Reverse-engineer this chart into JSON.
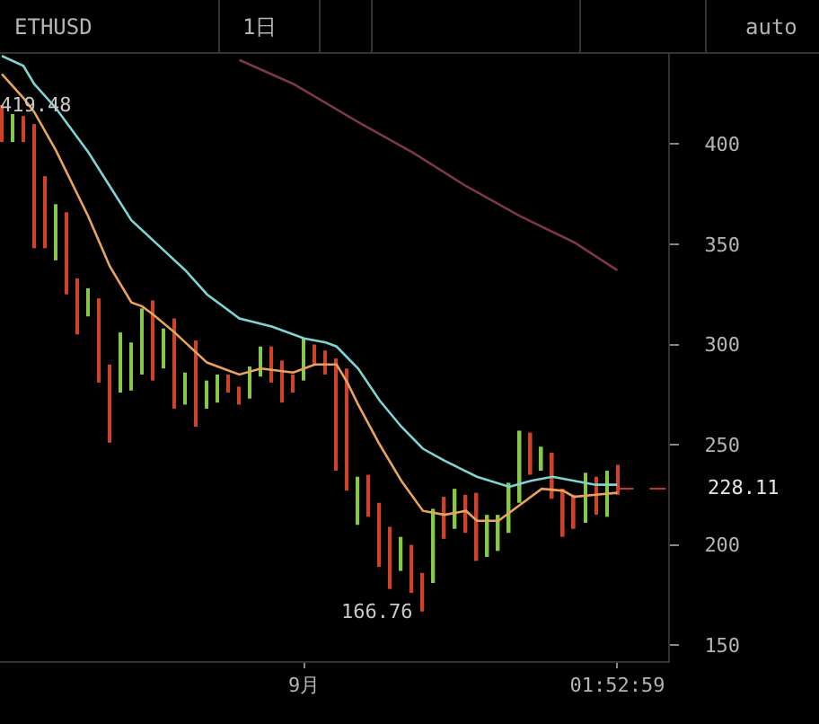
{
  "chart_data": {
    "type": "bar",
    "title": "ETHUSD",
    "annotations": [
      "1日",
      "auto",
      {
        "text": "419.48",
        "x": "--08-04",
        "y": 419.48
      },
      {
        "text": "166.76",
        "x": "--09-12",
        "y": 166.76
      },
      {
        "text": "228.11",
        "x": "--10-04T17:00",
        "y": 228.11
      }
    ],
    "x": [
      "--08-04",
      "--08-05",
      "--08-06",
      "--08-07",
      "--08-08",
      "--08-09",
      "--08-10",
      "--08-11",
      "--08-12",
      "--08-13",
      "--08-14",
      "--08-15",
      "--08-16",
      "--08-17",
      "--08-18",
      "--08-19",
      "--08-20",
      "--08-21",
      "--08-22",
      "--08-23",
      "--08-24",
      "--08-25",
      "--08-26",
      "--08-27",
      "--08-28",
      "--08-29",
      "--08-30",
      "--08-31",
      "--09-01",
      "--09-02",
      "--09-03",
      "--09-04",
      "--09-05",
      "--09-06",
      "--09-07",
      "--09-08",
      "--09-09",
      "--09-10",
      "--09-11",
      "--09-12",
      "--09-13",
      "--09-14",
      "--09-15",
      "--09-16",
      "--09-17",
      "--09-18",
      "--09-19",
      "--09-20",
      "--09-21",
      "--09-22",
      "--09-23",
      "--09-24",
      "--09-25",
      "--09-26",
      "--09-27",
      "--09-28",
      "--09-29",
      "--09-30"
    ],
    "series": [
      {
        "base": [
          401,
          401,
          401,
          348,
          348,
          342,
          325,
          305,
          314,
          281,
          251,
          276,
          277,
          285,
          282,
          288,
          268,
          270,
          259,
          268,
          271,
          276,
          270,
          273,
          284,
          281,
          271,
          276,
          282,
          290,
          285,
          237,
          227,
          210,
          214,
          189,
          178,
          187,
          176,
          166.76,
          181,
          203,
          208,
          206,
          192,
          194,
          197,
          206,
          221,
          235,
          237,
          223,
          204,
          208,
          211,
          215,
          214,
          225
        ],
        "values": [
          18.48,
          14,
          13,
          62,
          36,
          28,
          41,
          28,
          14,
          42,
          39,
          30,
          24,
          33,
          40,
          20,
          45,
          16,
          43,
          14,
          14,
          9,
          9,
          16,
          15,
          18,
          21,
          9,
          21,
          10,
          12,
          56,
          61,
          24,
          21,
          32,
          31,
          17,
          24,
          19.24,
          37,
          21,
          20,
          19,
          34,
          21,
          18,
          25,
          36,
          21,
          12,
          23,
          24,
          17,
          25,
          19,
          23,
          15
        ],
        "colors": [
          "#d0412b",
          "#86c94a",
          "#d0412b",
          "#d0412b",
          "#d0412b",
          "#86c94a",
          "#d0412b",
          "#d0412b",
          "#86c94a",
          "#d0412b",
          "#d0412b",
          "#86c94a",
          "#86c94a",
          "#86c94a",
          "#d0412b",
          "#86c94a",
          "#d0412b",
          "#86c94a",
          "#d0412b",
          "#86c94a",
          "#86c94a",
          "#d0412b",
          "#d0412b",
          "#86c94a",
          "#86c94a",
          "#d0412b",
          "#d0412b",
          "#d0412b",
          "#86c94a",
          "#d0412b",
          "#d0412b",
          "#d0412b",
          "#d0412b",
          "#86c94a",
          "#d0412b",
          "#d0412b",
          "#d0412b",
          "#86c94a",
          "#d0412b",
          "#d0412b",
          "#86c94a",
          "#d0412b",
          "#86c94a",
          "#d0412b",
          "#d0412b",
          "#86c94a",
          "#86c94a",
          "#86c94a",
          "#86c94a",
          "#d0412b",
          "#86c94a",
          "#d0412b",
          "#d0412b",
          "#d0412b",
          "#86c94a",
          "#d0412b",
          "#86c94a",
          "#d0412b"
        ]
      },
      {
        "type": "line",
        "color": "#e8a45c",
        "x": [
          "--08-04",
          "--08-06",
          "--08-07",
          "--08-09",
          "--08-12",
          "--08-14",
          "--08-16",
          "--08-17",
          "--08-18",
          "--08-20",
          "--08-23",
          "--08-26",
          "--08-28",
          "--08-31",
          "--09-02",
          "--09-04",
          "--09-05",
          "--09-06",
          "--09-08",
          "--09-10",
          "--09-12",
          "--09-14",
          "--09-16",
          "--09-17",
          "--09-19",
          "--09-21",
          "--09-23",
          "--09-25",
          "--09-26",
          "--09-28",
          "--09-30"
        ],
        "values": [
          435,
          423,
          416,
          397,
          364,
          339,
          321,
          319,
          315,
          306,
          291,
          285,
          288,
          286,
          290,
          290,
          281,
          270,
          250,
          232,
          217,
          215,
          217,
          212,
          212,
          220,
          228,
          227,
          224,
          225,
          226
        ]
      },
      {
        "type": "line",
        "color": "#7fd3d3",
        "x": [
          "--08-04",
          "--08-06",
          "--08-07",
          "--08-09",
          "--08-12",
          "--08-14",
          "--08-16",
          "--08-19",
          "--08-21",
          "--08-23",
          "--08-26",
          "--08-29",
          "--09-01",
          "--09-03",
          "--09-04",
          "--09-06",
          "--09-08",
          "--09-10",
          "--09-12",
          "--09-14",
          "--09-17",
          "--09-20",
          "--09-22",
          "--09-24",
          "--09-26",
          "--09-28",
          "--09-30"
        ],
        "values": [
          444,
          439,
          430,
          418,
          396,
          379,
          362,
          347,
          337,
          325,
          313,
          309,
          303,
          301,
          299,
          288,
          272,
          259,
          248,
          242,
          234,
          229,
          232,
          234,
          232,
          230,
          230
        ]
      },
      {
        "type": "line",
        "color": "#7d3550",
        "x": [
          "--08-26",
          "--08-31",
          "--09-06",
          "--09-11",
          "--09-16",
          "--09-21",
          "--09-26",
          "--09-30"
        ],
        "values": [
          442,
          430,
          411,
          396,
          379,
          364,
          351,
          337
        ]
      },
      {
        "type": "line",
        "color": "#c0392b",
        "line_style": "dashed",
        "x": [
          "--09-30",
          "--10-04T17:00"
        ],
        "values": [
          228.11,
          228.11
        ]
      }
    ],
    "xlim": [
      "--08-03T20:00",
      "--10-04T17:00"
    ],
    "xticks": [
      {
        "value": "--09-01",
        "label": "9月"
      },
      {
        "value": "--09-30",
        "label": "01:52:59"
      }
    ],
    "ylim": [
      142,
      445
    ],
    "yticks": [
      150,
      200,
      250,
      300,
      350,
      400
    ]
  }
}
